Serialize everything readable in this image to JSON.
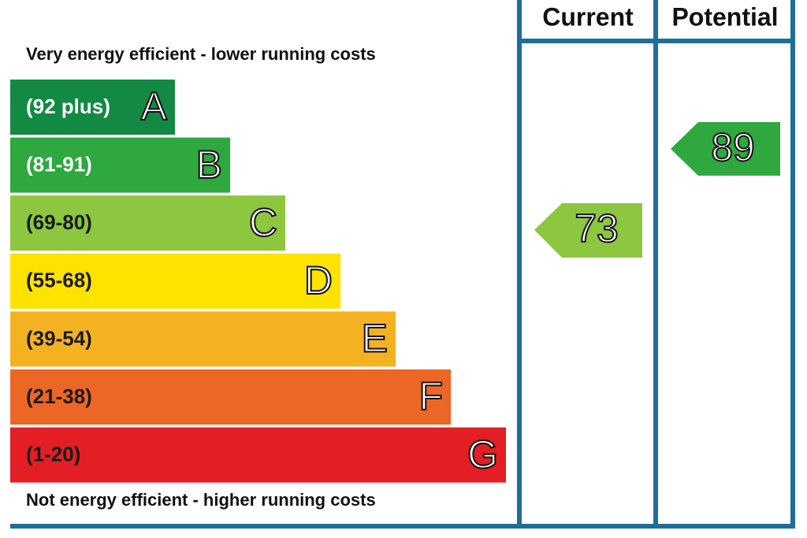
{
  "header": {
    "current": "Current",
    "potential": "Potential"
  },
  "top_note": "Very energy efficient - lower running costs",
  "bottom_note": "Not energy efficient - higher running costs",
  "bands": [
    {
      "range": "(92 plus)",
      "letter": "A",
      "color": "#138a43"
    },
    {
      "range": "(81-91)",
      "letter": "B",
      "color": "#2ea83f"
    },
    {
      "range": "(69-80)",
      "letter": "C",
      "color": "#8dc63f"
    },
    {
      "range": "(55-68)",
      "letter": "D",
      "color": "#ffe300"
    },
    {
      "range": "(39-54)",
      "letter": "E",
      "color": "#f4b223"
    },
    {
      "range": "(21-38)",
      "letter": "F",
      "color": "#ec6625"
    },
    {
      "range": "(1-20)",
      "letter": "G",
      "color": "#e31e25"
    }
  ],
  "current": {
    "value": 73,
    "color": "#8dc63f"
  },
  "potential": {
    "value": 89,
    "color": "#2ea83f"
  }
}
